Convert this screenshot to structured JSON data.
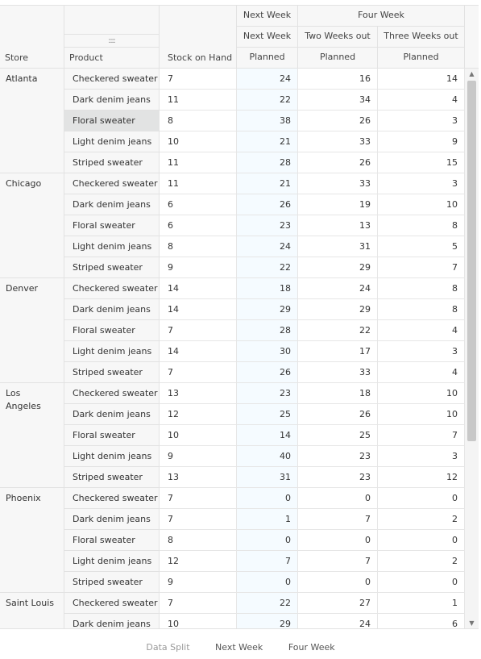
{
  "headers": {
    "group_next_week": "Next Week",
    "group_four_week": "Four Week",
    "sub_next_week": "Next Week",
    "sub_two_weeks": "Two Weeks out",
    "sub_three_weeks": "Three Weeks out",
    "store": "Store",
    "product": "Product",
    "stock": "Stock on Hand",
    "planned_1": "Planned",
    "planned_2": "Planned",
    "planned_3": "Planned",
    "drag_handle": "::::"
  },
  "stores": [
    {
      "name": "Atlanta",
      "rows": [
        {
          "product": "Checkered sweater",
          "stock": "7",
          "nw": "24",
          "tw": "16",
          "th": "14"
        },
        {
          "product": "Dark denim jeans",
          "stock": "11",
          "nw": "22",
          "tw": "34",
          "th": "4"
        },
        {
          "product": "Floral sweater",
          "stock": "8",
          "nw": "38",
          "tw": "26",
          "th": "3"
        },
        {
          "product": "Light denim jeans",
          "stock": "10",
          "nw": "21",
          "tw": "33",
          "th": "9"
        },
        {
          "product": "Striped sweater",
          "stock": "11",
          "nw": "28",
          "tw": "26",
          "th": "15"
        }
      ]
    },
    {
      "name": "Chicago",
      "rows": [
        {
          "product": "Checkered sweater",
          "stock": "11",
          "nw": "21",
          "tw": "33",
          "th": "3"
        },
        {
          "product": "Dark denim jeans",
          "stock": "6",
          "nw": "26",
          "tw": "19",
          "th": "10"
        },
        {
          "product": "Floral sweater",
          "stock": "6",
          "nw": "23",
          "tw": "13",
          "th": "8"
        },
        {
          "product": "Light denim jeans",
          "stock": "8",
          "nw": "24",
          "tw": "31",
          "th": "5"
        },
        {
          "product": "Striped sweater",
          "stock": "9",
          "nw": "22",
          "tw": "29",
          "th": "7"
        }
      ]
    },
    {
      "name": "Denver",
      "rows": [
        {
          "product": "Checkered sweater",
          "stock": "14",
          "nw": "18",
          "tw": "24",
          "th": "8"
        },
        {
          "product": "Dark denim jeans",
          "stock": "14",
          "nw": "29",
          "tw": "29",
          "th": "8"
        },
        {
          "product": "Floral sweater",
          "stock": "7",
          "nw": "28",
          "tw": "22",
          "th": "4"
        },
        {
          "product": "Light denim jeans",
          "stock": "14",
          "nw": "30",
          "tw": "17",
          "th": "3"
        },
        {
          "product": "Striped sweater",
          "stock": "7",
          "nw": "26",
          "tw": "33",
          "th": "4"
        }
      ]
    },
    {
      "name": "Los Angeles",
      "rows": [
        {
          "product": "Checkered sweater",
          "stock": "13",
          "nw": "23",
          "tw": "18",
          "th": "10"
        },
        {
          "product": "Dark denim jeans",
          "stock": "12",
          "nw": "25",
          "tw": "26",
          "th": "10"
        },
        {
          "product": "Floral sweater",
          "stock": "10",
          "nw": "14",
          "tw": "25",
          "th": "7"
        },
        {
          "product": "Light denim jeans",
          "stock": "9",
          "nw": "40",
          "tw": "23",
          "th": "3"
        },
        {
          "product": "Striped sweater",
          "stock": "13",
          "nw": "31",
          "tw": "23",
          "th": "12"
        }
      ]
    },
    {
      "name": "Phoenix",
      "rows": [
        {
          "product": "Checkered sweater",
          "stock": "7",
          "nw": "0",
          "tw": "0",
          "th": "0"
        },
        {
          "product": "Dark denim jeans",
          "stock": "7",
          "nw": "1",
          "tw": "7",
          "th": "2"
        },
        {
          "product": "Floral sweater",
          "stock": "8",
          "nw": "0",
          "tw": "0",
          "th": "0"
        },
        {
          "product": "Light denim jeans",
          "stock": "12",
          "nw": "7",
          "tw": "7",
          "th": "2"
        },
        {
          "product": "Striped sweater",
          "stock": "9",
          "nw": "0",
          "tw": "0",
          "th": "0"
        }
      ]
    },
    {
      "name": "Saint Louis",
      "rows": [
        {
          "product": "Checkered sweater",
          "stock": "7",
          "nw": "22",
          "tw": "27",
          "th": "1"
        },
        {
          "product": "Dark denim jeans",
          "stock": "10",
          "nw": "29",
          "tw": "24",
          "th": "6"
        }
      ]
    }
  ],
  "selected_cell": {
    "store_index": 0,
    "row_index": 2
  },
  "legend": {
    "data_split": "Data Split",
    "next_week": "Next Week",
    "four_week": "Four Week"
  },
  "colors": {
    "header_bg": "#f7f7f7",
    "next_week_col_bg": "#f5fbff",
    "selected_bg": "#e2e3e3"
  }
}
